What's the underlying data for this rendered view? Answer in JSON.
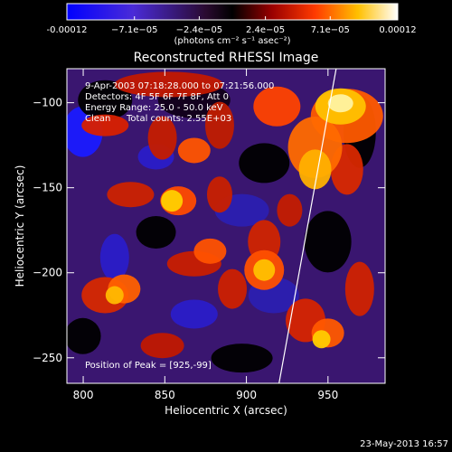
{
  "colorbar": {
    "ticks": [
      "-0.00012",
      "−7.1e−05",
      "−2.4e−05",
      "2.4e−05",
      "7.1e−05",
      "0.00012"
    ],
    "tick_values": [
      -0.00012,
      -7.1e-05,
      -2.4e-05,
      2.4e-05,
      7.1e-05,
      0.00012
    ],
    "range": [
      -0.00012,
      0.00012
    ],
    "units": "(photons cm⁻² s⁻¹ asec⁻²)"
  },
  "chart_data": {
    "type": "heatmap",
    "title": "Reconstructed RHESSI Image",
    "xlabel": "Heliocentric X (arcsec)",
    "ylabel": "Heliocentric Y (arcsec)",
    "xlim": [
      790,
      985
    ],
    "ylim": [
      -265,
      -80
    ],
    "xticks": [
      800,
      850,
      900,
      950
    ],
    "yticks": [
      -100,
      -150,
      -200,
      -250
    ],
    "annotations": [
      "9-Apr-2003 07:18:28.000 to 07:21:56.000",
      "Detectors: 4F 5F 6F 7F 8F, Att 0",
      "Energy Range: 25.0 - 50.0 keV",
      "Clean",
      "Total counts: 2.55E+03"
    ],
    "peak_label": "Position of Peak = [925,-99]",
    "peak": [
      925,
      -99
    ],
    "limb": [
      [
        920,
        -265
      ],
      [
        955,
        -80
      ]
    ],
    "colormap": "blue-purple-black-red-yellow-white"
  },
  "footer": {
    "date": "23-May-2013 16:57"
  }
}
